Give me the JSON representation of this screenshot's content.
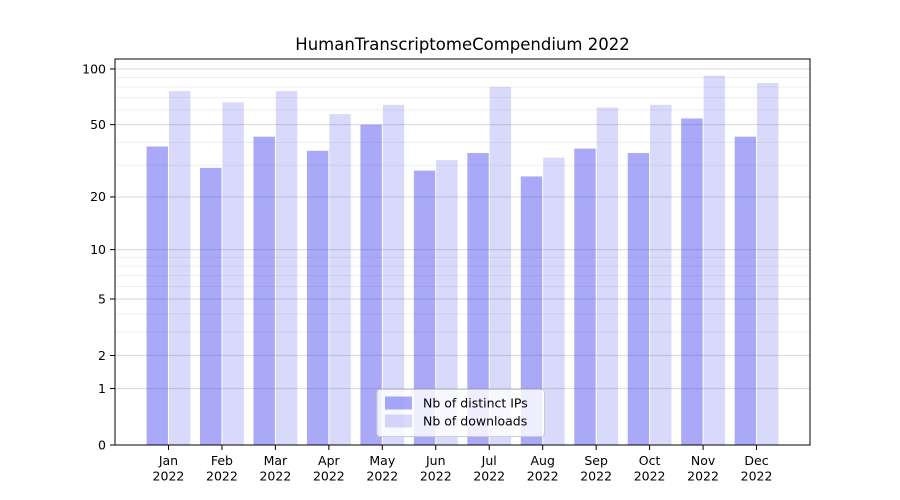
{
  "chart_data": {
    "type": "bar",
    "title": "HumanTranscriptomeCompendium 2022",
    "categories": [
      "Jan",
      "Feb",
      "Mar",
      "Apr",
      "May",
      "Jun",
      "Jul",
      "Aug",
      "Sep",
      "Oct",
      "Nov",
      "Dec"
    ],
    "category_year": "2022",
    "series": [
      {
        "name": "Nb of distinct IPs",
        "values": [
          38,
          29,
          43,
          36,
          50,
          28,
          35,
          26,
          37,
          35,
          54,
          43
        ],
        "color": "#5050f0",
        "opacity": 0.49
      },
      {
        "name": "Nb of downloads",
        "values": [
          76,
          66,
          76,
          57,
          64,
          32,
          80,
          33,
          62,
          64,
          92,
          84
        ],
        "color": "#5050f0",
        "opacity": 0.22
      }
    ],
    "xlabel": "",
    "ylabel": "",
    "yscale": "log1p",
    "ylim": [
      0,
      113
    ],
    "yticks": [
      0,
      1,
      2,
      5,
      10,
      20,
      50,
      100
    ],
    "minor_gridlines": [
      3,
      4,
      6,
      7,
      8,
      9,
      30,
      40,
      60,
      70,
      80,
      90
    ],
    "grid": true,
    "legend_position": "lower center",
    "colors": {
      "background": "#ffffff",
      "axis": "#000000",
      "major_grid": "#dedede",
      "minor_grid": "#efefef",
      "legend_bg": "#ffffff",
      "legend_border": "#cccccc"
    }
  }
}
